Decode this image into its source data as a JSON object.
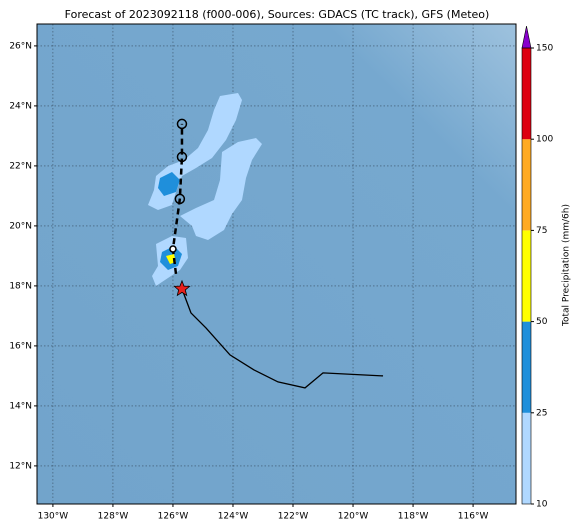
{
  "title": "Forecast of 2023092118 (f000-006), Sources: GDACS (TC track), GFS (Meteo)",
  "map": {
    "xlim": [
      -130.53,
      -114.57
    ],
    "ylim": [
      10.73,
      26.73
    ],
    "grid": true,
    "xticks": [
      {
        "value": -130,
        "label": "130°W"
      },
      {
        "value": -128,
        "label": "128°W"
      },
      {
        "value": -126,
        "label": "126°W"
      },
      {
        "value": -124,
        "label": "124°W"
      },
      {
        "value": -122,
        "label": "122°W"
      },
      {
        "value": -120,
        "label": "120°W"
      },
      {
        "value": -118,
        "label": "118°W"
      },
      {
        "value": -116,
        "label": "116°W"
      }
    ],
    "yticks": [
      {
        "value": 12,
        "label": "12°N"
      },
      {
        "value": 14,
        "label": "14°N"
      },
      {
        "value": 16,
        "label": "16°N"
      },
      {
        "value": 18,
        "label": "18°N"
      },
      {
        "value": 20,
        "label": "20°N"
      },
      {
        "value": 22,
        "label": "22°N"
      },
      {
        "value": 24,
        "label": "24°N"
      },
      {
        "value": 26,
        "label": "26°N"
      }
    ],
    "past_track": {
      "lon": [
        -119.0,
        -121.0,
        -121.6,
        -122.5,
        -123.3,
        -124.1,
        -124.9,
        -125.4,
        -125.7
      ],
      "lat": [
        15.0,
        15.1,
        14.6,
        14.8,
        15.2,
        15.7,
        16.6,
        17.1,
        17.9
      ]
    },
    "current_position": {
      "lon": -125.7,
      "lat": 17.9
    },
    "forecast_track": {
      "lon": [
        -125.9,
        -126.0,
        -125.77,
        -125.7,
        -125.7
      ],
      "lat": [
        18.4,
        19.23,
        20.9,
        22.3,
        23.4
      ]
    },
    "colorbar": {
      "label": "Total Precipitation (mm/6h)",
      "levels": [
        10,
        25,
        50,
        75,
        100,
        150
      ],
      "colors": [
        "#b0d8ff",
        "#1f8fdb",
        "#ffff00",
        "#ffaa22",
        "#dd0011"
      ],
      "extend_color": "#8800cc"
    }
  }
}
